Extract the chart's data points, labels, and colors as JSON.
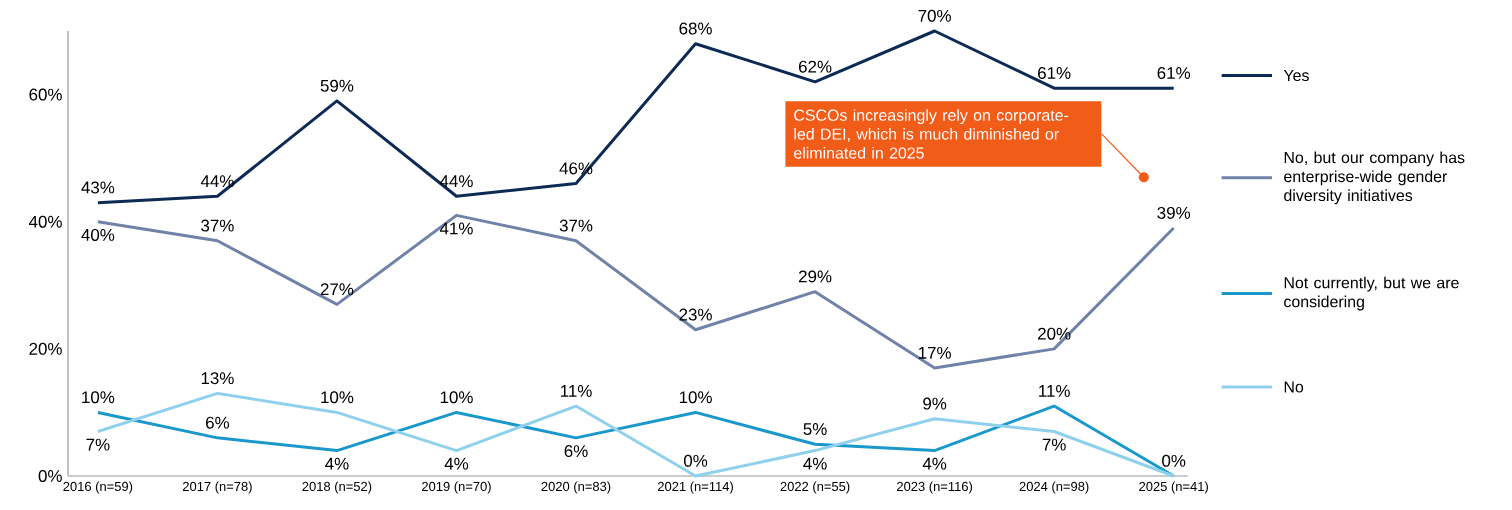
{
  "chart_data": {
    "type": "line",
    "categories": [
      "2016 (n=59)",
      "2017 (n=78)",
      "2018 (n=52)",
      "2019 (n=70)",
      "2020 (n=83)",
      "2021 (n=114)",
      "2022 (n=55)",
      "2023 (n=116)",
      "2024 (n=98)",
      "2025 (n=41)"
    ],
    "series": [
      {
        "name": "Yes",
        "color": "#0d2a55",
        "values": [
          43,
          44,
          59,
          44,
          46,
          68,
          62,
          70,
          61,
          61
        ],
        "value_labels": [
          "43%",
          "44%",
          "59%",
          "44%",
          "46%",
          "68%",
          "62%",
          "70%",
          "61%",
          "61%"
        ]
      },
      {
        "name": "No, but our company has enterprise-wide gender diversity initiatives",
        "color": "#7182a8",
        "values": [
          40,
          37,
          27,
          41,
          37,
          23,
          29,
          17,
          20,
          39
        ],
        "value_labels": [
          "40%",
          "37%",
          "27%",
          "41%",
          "37%",
          "23%",
          "29%",
          "17%",
          "20%",
          "39%"
        ]
      },
      {
        "name": "Not currently, but we are considering",
        "color": "#1a98cc",
        "values": [
          10,
          6,
          4,
          10,
          6,
          10,
          5,
          4,
          11,
          0
        ],
        "value_labels": [
          "10%",
          "6%",
          "4%",
          "10%",
          "6%",
          "10%",
          "5%",
          "4%",
          "11%",
          "0%"
        ]
      },
      {
        "name": "No",
        "color": "#8fd0ec",
        "values": [
          7,
          13,
          10,
          4,
          11,
          0,
          4,
          9,
          7,
          0
        ],
        "value_labels": [
          "7%",
          "13%",
          "10%",
          "4%",
          "11%",
          "0%",
          "4%",
          "9%",
          "7%",
          null
        ]
      }
    ],
    "ylim": [
      0,
      70
    ],
    "yticks": [
      {
        "value": 0,
        "label": "0%"
      },
      {
        "value": 20,
        "label": "20%"
      },
      {
        "value": 40,
        "label": "40%"
      },
      {
        "value": 60,
        "label": "60%"
      }
    ],
    "grid": false,
    "legend": "right",
    "marker": "none",
    "line_style": "solid",
    "annotations": [
      "CSCOs increasingly rely on corporate-led DEI, which is much diminished or eliminated in 2025"
    ]
  }
}
